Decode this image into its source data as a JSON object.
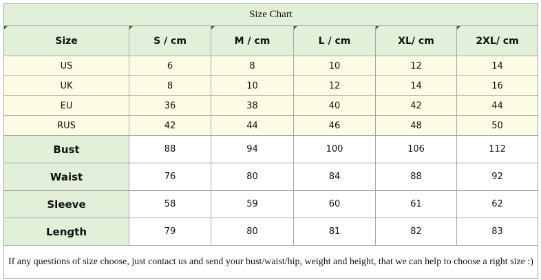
{
  "title": "Size Chart",
  "header": [
    "Size",
    "S / cm",
    "M / cm",
    "L / cm",
    "XL/ cm",
    "2XL/ cm"
  ],
  "size_rows": [
    [
      "US",
      6,
      8,
      10,
      12,
      14
    ],
    [
      "UK",
      8,
      10,
      12,
      14,
      16
    ],
    [
      "EU",
      36,
      38,
      40,
      42,
      44
    ],
    [
      "RUS",
      42,
      44,
      46,
      48,
      50
    ]
  ],
  "measure_rows": [
    [
      "Bust",
      88,
      94,
      100,
      106,
      112
    ],
    [
      "Waist",
      76,
      80,
      84,
      88,
      92
    ],
    [
      "Sleeve",
      58,
      59,
      60,
      61,
      62
    ],
    [
      "Length",
      79,
      80,
      81,
      82,
      83
    ]
  ],
  "note": "If any questions of size choose, just contact us and send your bust/waist/hip, weight and height, that we can help to choose a right size :)"
}
